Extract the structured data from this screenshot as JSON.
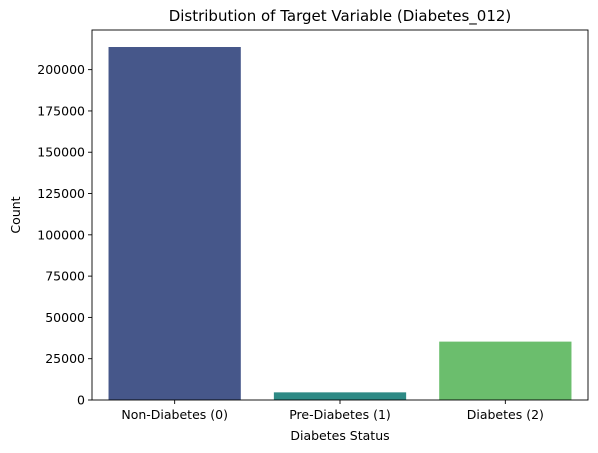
{
  "chart_data": {
    "type": "bar",
    "title": "Distribution of Target Variable (Diabetes_012)",
    "xlabel": "Diabetes Status",
    "ylabel": "Count",
    "categories": [
      "Non-Diabetes (0)",
      "Pre-Diabetes (1)",
      "Diabetes (2)"
    ],
    "values": [
      213703,
      4631,
      35346
    ],
    "colors": [
      "#46578a",
      "#2e8a85",
      "#6bbe6d"
    ],
    "ylim": [
      0,
      224000
    ],
    "yticks": [
      0,
      25000,
      50000,
      75000,
      100000,
      125000,
      150000,
      175000,
      200000
    ],
    "ytick_labels": [
      "0",
      "25000",
      "50000",
      "75000",
      "100000",
      "125000",
      "150000",
      "175000",
      "200000"
    ],
    "grid": false,
    "legend": "none"
  }
}
